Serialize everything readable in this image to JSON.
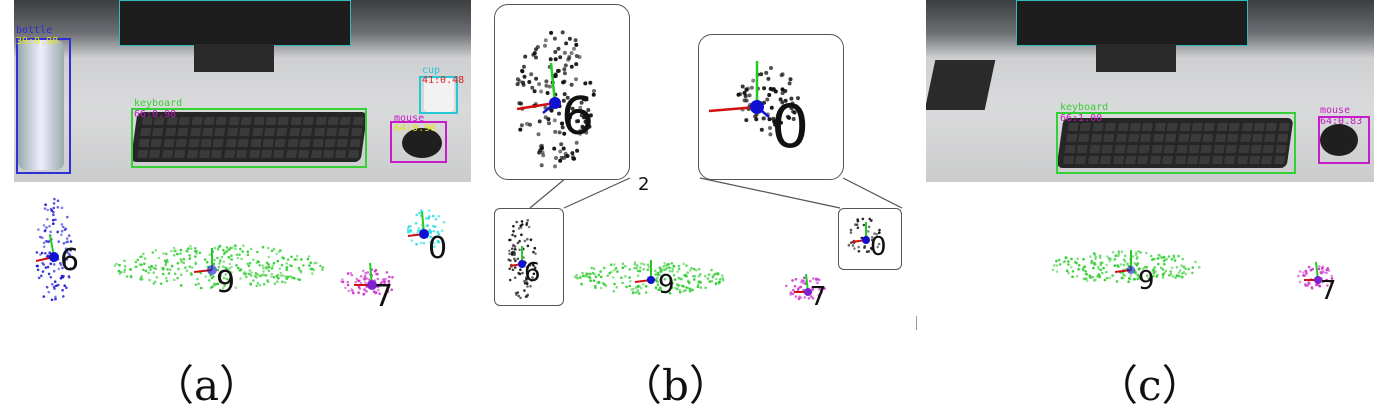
{
  "captions": {
    "a": "（a）",
    "b": "（b）",
    "c": "（c）"
  },
  "panel_a": {
    "detections": [
      {
        "name": "bottle",
        "score": "39:0.98",
        "color": "#2f2fd6",
        "label_color": "#e6e600"
      },
      {
        "name": "cup",
        "score": "41:0.48",
        "color": "#27c7d6",
        "label_color": "#e02020"
      },
      {
        "name": "keyboard",
        "score": "66:0.98",
        "color": "#35d035",
        "label_color": "#c01cc0"
      },
      {
        "name": "mouse",
        "score": "64:0.96",
        "color": "#c81cc8",
        "label_color": "#e6e600"
      }
    ],
    "object_ids": [
      "6",
      "9",
      "0",
      "7"
    ]
  },
  "panel_b": {
    "object_ids": [
      "6",
      "9",
      "0",
      "7"
    ],
    "zoom_ids": [
      "6",
      "0"
    ],
    "stray_mark": "2"
  },
  "panel_c": {
    "detections": [
      {
        "name": "keyboard",
        "score": "66:1.00",
        "color": "#35d035",
        "label_color": "#c01cc0"
      },
      {
        "name": "mouse",
        "score": "64:0.83",
        "color": "#c81cc8",
        "label_color": "#c01cc0"
      }
    ],
    "object_ids": [
      "9",
      "7"
    ]
  },
  "colors": {
    "point_blue": "#1a1ad0",
    "point_green": "#33cc33",
    "point_cyan": "#33dddd",
    "point_magenta": "#cc33cc",
    "axis_red": "#d01010",
    "axis_green": "#22cc22",
    "axis_blue": "#1010d0"
  }
}
